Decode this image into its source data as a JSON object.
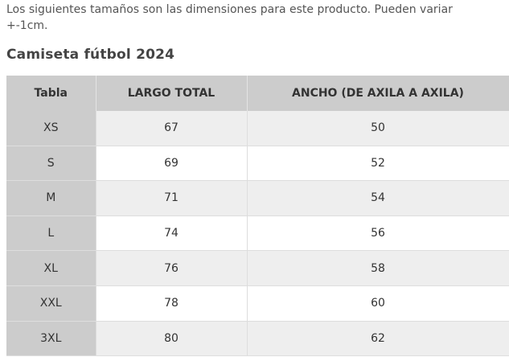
{
  "intro_text": "Los siguientes tamaños son las dimensiones para este producto. Pueden variar +-1cm.",
  "title": "Camiseta fútbol 2024",
  "table": {
    "headers": [
      "Tabla",
      "LARGO TOTAL",
      "ANCHO (DE AXILA A AXILA)"
    ],
    "rows": [
      [
        "XS",
        "67",
        "50"
      ],
      [
        "S",
        "69",
        "52"
      ],
      [
        "M",
        "71",
        "54"
      ],
      [
        "L",
        "74",
        "56"
      ],
      [
        "XL",
        "76",
        "58"
      ],
      [
        "XXL",
        "78",
        "60"
      ],
      [
        "3XL",
        "80",
        "62"
      ]
    ]
  },
  "colors": {
    "header_bg": "#cccccc",
    "row_alt_bg": "#eeeeee"
  }
}
